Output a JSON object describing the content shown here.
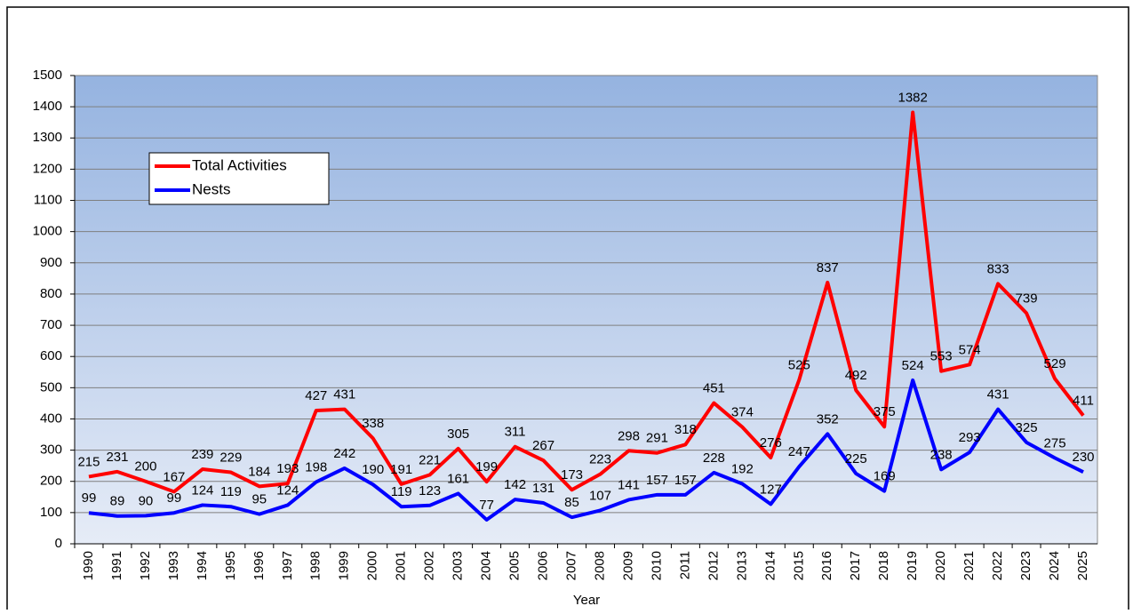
{
  "chart_data": {
    "type": "line",
    "x_label": "Year",
    "categories": [
      "1990",
      "1991",
      "1992",
      "1993",
      "1994",
      "1995",
      "1996",
      "1997",
      "1998",
      "1999",
      "2000",
      "2001",
      "2002",
      "2003",
      "2004",
      "2005",
      "2006",
      "2007",
      "2008",
      "2009",
      "2010",
      "2011",
      "2012",
      "2013",
      "2014",
      "2015",
      "2016",
      "2017",
      "2018",
      "2019",
      "2020",
      "2021",
      "2022",
      "2023",
      "2024",
      "2025"
    ],
    "series": [
      {
        "name": "Total Activities",
        "color": "#ff0000",
        "values": [
          215,
          231,
          200,
          167,
          239,
          229,
          184,
          193,
          427,
          431,
          338,
          191,
          221,
          305,
          199,
          311,
          267,
          173,
          223,
          298,
          291,
          318,
          451,
          374,
          276,
          525,
          837,
          492,
          375,
          1382,
          553,
          574,
          833,
          739,
          529,
          411
        ]
      },
      {
        "name": "Nests",
        "color": "#0000ff",
        "values": [
          99,
          89,
          90,
          99,
          124,
          119,
          95,
          124,
          198,
          242,
          190,
          119,
          123,
          161,
          77,
          142,
          131,
          85,
          107,
          141,
          157,
          157,
          228,
          192,
          127,
          247,
          352,
          225,
          169,
          524,
          238,
          293,
          431,
          325,
          275,
          230
        ]
      }
    ],
    "ylim": [
      0,
      1500
    ],
    "yticks": [
      0,
      100,
      200,
      300,
      400,
      500,
      600,
      700,
      800,
      900,
      1000,
      1100,
      1200,
      1300,
      1400,
      1500
    ],
    "grid": true,
    "legend": "upper-left"
  }
}
